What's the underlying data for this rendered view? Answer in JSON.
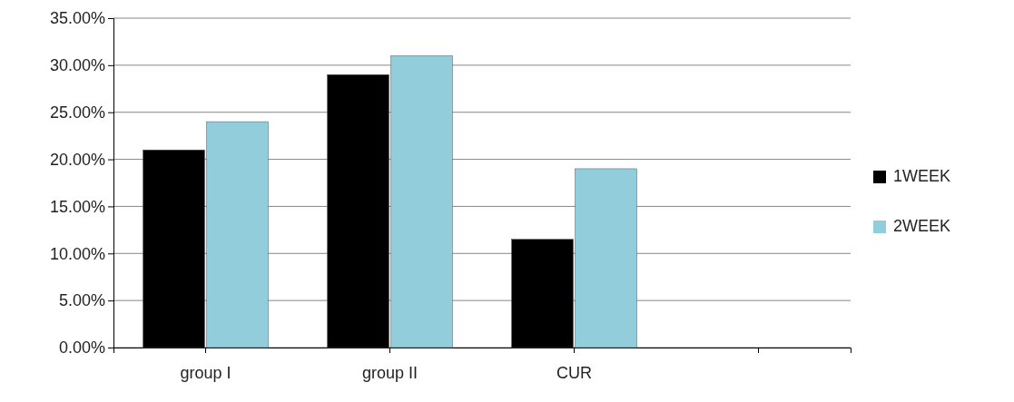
{
  "chart_data": {
    "type": "bar",
    "categories": [
      "group I",
      "group II",
      "CUR",
      null
    ],
    "series": [
      {
        "name": "1WEEK",
        "color": "#000000",
        "values": [
          21,
          29,
          11.5,
          null
        ]
      },
      {
        "name": "2WEEK",
        "color": "#92cddc",
        "values": [
          24,
          31,
          19,
          null
        ]
      }
    ],
    "ylim": [
      0,
      35
    ],
    "yticks": [
      {
        "value": 0,
        "label": "0.00%"
      },
      {
        "value": 5,
        "label": "5.00%"
      },
      {
        "value": 10,
        "label": "10.00%"
      },
      {
        "value": 15,
        "label": "15.00%"
      },
      {
        "value": 20,
        "label": "20.00%"
      },
      {
        "value": 25,
        "label": "25.00%"
      },
      {
        "value": 30,
        "label": "30.00%"
      },
      {
        "value": 35,
        "label": "35.00%"
      }
    ],
    "grid": "y",
    "legend": "right"
  }
}
